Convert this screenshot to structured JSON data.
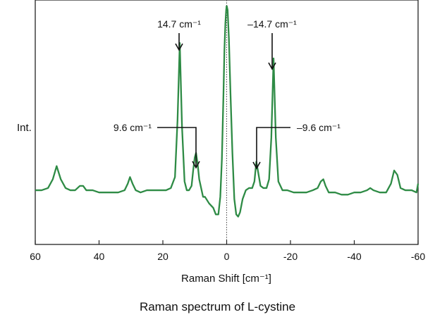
{
  "caption": "Raman spectrum of L-cystine",
  "chart_data": {
    "type": "line",
    "title": "",
    "xlabel": "Raman Shift [cm⁻¹]",
    "ylabel": "Int.",
    "xlim": [
      60,
      -60
    ],
    "ylim": [
      0,
      1
    ],
    "x_reversed": true,
    "x_ticks": [
      60,
      40,
      20,
      0,
      -20,
      -40,
      -60
    ],
    "x_tick_labels": [
      "60",
      "40",
      "20",
      "0",
      "-20",
      "-40",
      "-60"
    ],
    "grid": false,
    "legend": "none",
    "line_color": "#2e8b45",
    "reference_line_x": 0,
    "series": [
      {
        "x": [
          60,
          58,
          56,
          54.5,
          53.3,
          52,
          50.5,
          49,
          47.5,
          46,
          45,
          44,
          42,
          40,
          38,
          36,
          34,
          32,
          31,
          30.3,
          29.5,
          28.5,
          27,
          25,
          23,
          21,
          19,
          17.5,
          16.2,
          15.4,
          14.7,
          14.0,
          13.2,
          12.5,
          11.8,
          11,
          10.5,
          10.0,
          9.6,
          9.1,
          8.6,
          8.0,
          7.4,
          6.8,
          5.5,
          4.2,
          3.4,
          2.6,
          2.0,
          1.5,
          1.0,
          0.7,
          0.4,
          0.15,
          0
        ],
        "y": [
          0.16,
          0.16,
          0.17,
          0.21,
          0.27,
          0.21,
          0.17,
          0.16,
          0.16,
          0.18,
          0.18,
          0.16,
          0.16,
          0.15,
          0.15,
          0.15,
          0.15,
          0.16,
          0.19,
          0.22,
          0.19,
          0.16,
          0.15,
          0.16,
          0.16,
          0.16,
          0.16,
          0.17,
          0.22,
          0.48,
          0.83,
          0.45,
          0.2,
          0.16,
          0.16,
          0.18,
          0.25,
          0.31,
          0.33,
          0.28,
          0.21,
          0.17,
          0.13,
          0.13,
          0.1,
          0.08,
          0.05,
          0.05,
          0.13,
          0.3,
          0.6,
          0.8,
          0.92,
          0.98,
          1.0
        ]
      },
      {
        "x": [
          0,
          -0.3,
          -0.7,
          -1.2,
          -1.8,
          -2.4,
          -3.0,
          -3.6,
          -4.2,
          -5.0,
          -6.0,
          -7.0,
          -8.0,
          -8.7,
          -9.3,
          -9.9,
          -10.6,
          -11.5,
          -12.5,
          -13.3,
          -14.0,
          -14.7,
          -15.4,
          -16.2,
          -17.5,
          -19,
          -21,
          -23,
          -25,
          -27,
          -28.5,
          -29.5,
          -30.3,
          -31,
          -32,
          -34,
          -36,
          -38,
          -40,
          -42,
          -44,
          -45,
          -46,
          -48,
          -50,
          -51.5,
          -52.5,
          -53.5,
          -54.5,
          -56,
          -58,
          -59.5,
          -60
        ],
        "y": [
          1.0,
          0.98,
          0.85,
          0.6,
          0.33,
          0.12,
          0.05,
          0.04,
          0.06,
          0.12,
          0.16,
          0.17,
          0.17,
          0.2,
          0.29,
          0.24,
          0.18,
          0.17,
          0.17,
          0.21,
          0.4,
          0.76,
          0.4,
          0.2,
          0.16,
          0.16,
          0.15,
          0.15,
          0.15,
          0.16,
          0.17,
          0.2,
          0.21,
          0.18,
          0.15,
          0.15,
          0.14,
          0.14,
          0.15,
          0.15,
          0.16,
          0.17,
          0.16,
          0.15,
          0.15,
          0.19,
          0.25,
          0.23,
          0.17,
          0.16,
          0.16,
          0.15,
          0.19
        ]
      }
    ],
    "annotations": [
      {
        "text": "14.7 cm⁻¹",
        "x": 14.7
      },
      {
        "text": "9.6 cm⁻¹",
        "x": 9.6
      },
      {
        "text": "–14.7 cm⁻¹",
        "x": -14.7
      },
      {
        "text": "–9.6 cm⁻¹",
        "x": -9.6
      }
    ]
  }
}
